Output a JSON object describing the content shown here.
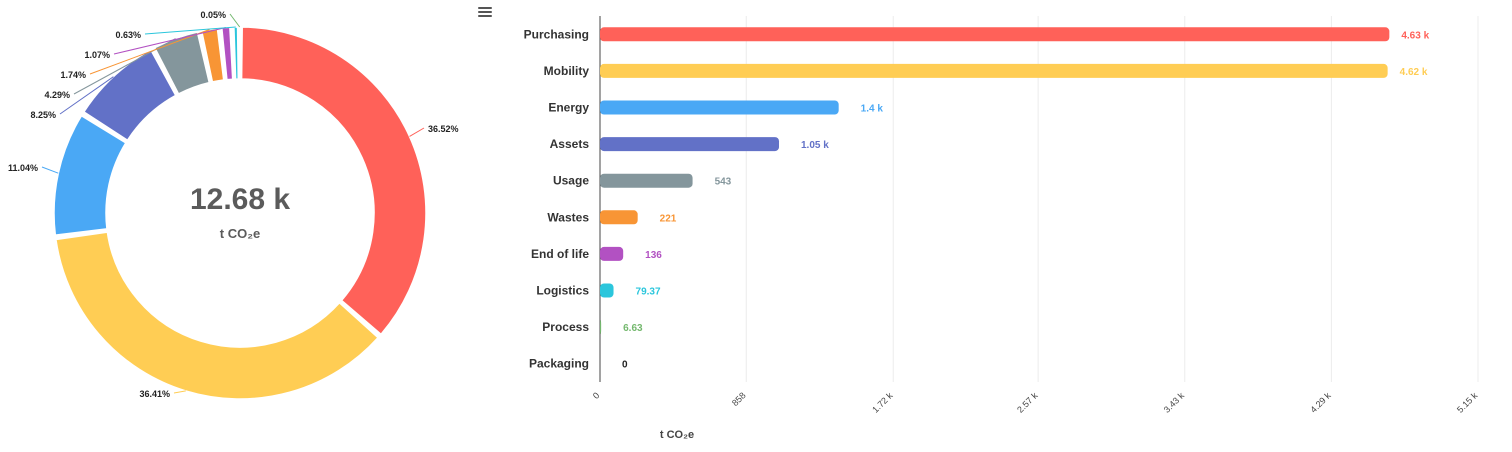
{
  "center": {
    "value": "12.68 k",
    "unit": "t CO₂e"
  },
  "chart_data": [
    {
      "type": "pie",
      "slices": [
        {
          "label": "Purchasing",
          "value": 4630,
          "percent_label": "36.52%",
          "color": "#ff6159"
        },
        {
          "label": "Mobility",
          "value": 4620,
          "percent_label": "36.41%",
          "color": "#ffcd54"
        },
        {
          "label": "Energy",
          "value": 1400,
          "percent_label": "11.04%",
          "color": "#4aa8f5"
        },
        {
          "label": "Assets",
          "value": 1050,
          "percent_label": "8.25%",
          "color": "#6271c7"
        },
        {
          "label": "Usage",
          "value": 543,
          "percent_label": "4.29%",
          "color": "#84969c"
        },
        {
          "label": "Wastes",
          "value": 221,
          "percent_label": "1.74%",
          "color": "#f89535"
        },
        {
          "label": "End of life",
          "value": 136,
          "percent_label": "1.07%",
          "color": "#b251c2"
        },
        {
          "label": "Logistics",
          "value": 79.37,
          "percent_label": "0.63%",
          "color": "#2bc6dc"
        },
        {
          "label": "Process",
          "value": 6.63,
          "percent_label": "0.05%",
          "color": "#74b86e"
        },
        {
          "label": "Packaging",
          "value": 0,
          "percent_label": "",
          "color": "#333333"
        }
      ]
    },
    {
      "type": "bar",
      "orientation": "horizontal",
      "categories": [
        "Purchasing",
        "Mobility",
        "Energy",
        "Assets",
        "Usage",
        "Wastes",
        "End of life",
        "Logistics",
        "Process",
        "Packaging"
      ],
      "values": [
        4630,
        4620,
        1400,
        1050,
        543,
        221,
        136,
        79.37,
        6.63,
        0
      ],
      "value_labels": [
        "4.63 k",
        "4.62 k",
        "1.4 k",
        "1.05 k",
        "543",
        "221",
        "136",
        "79.37",
        "6.63",
        "0"
      ],
      "colors": [
        "#ff6159",
        "#ffcd54",
        "#4aa8f5",
        "#6271c7",
        "#84969c",
        "#f89535",
        "#b251c2",
        "#2bc6dc",
        "#74b86e",
        "#222222"
      ],
      "xlim": [
        0,
        5150
      ],
      "xticks": [
        0,
        858,
        1720,
        2570,
        3430,
        4290,
        5150
      ],
      "xtick_labels": [
        "0",
        "858",
        "1.72 k",
        "2.57 k",
        "3.43 k",
        "4.29 k",
        "5.15 k"
      ],
      "xlabel": "t CO₂e",
      "grid": "vertical"
    }
  ]
}
